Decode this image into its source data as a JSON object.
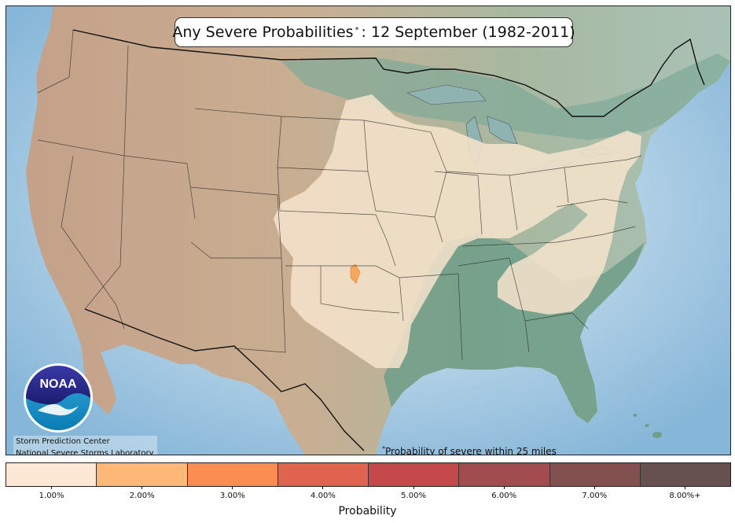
{
  "title": {
    "prefix": "Any Severe Probabilities",
    "marker": "*",
    "suffix": ": 12 September (1982-2011)"
  },
  "credits": {
    "line1": "Storm Prediction Center",
    "line2": "National Severe Storms Laboratory"
  },
  "footnote": {
    "marker": "*",
    "text": "Probability of severe within 25 miles"
  },
  "logo": {
    "text": "NOAA",
    "icon": "noaa-logo-icon"
  },
  "colorbar": {
    "label": "Probability",
    "ticks": [
      "1.00%",
      "2.00%",
      "3.00%",
      "4.00%",
      "5.00%",
      "6.00%",
      "7.00%",
      "8.00%+"
    ],
    "colors": [
      "#fde8d6",
      "#fdb877",
      "#fc8d52",
      "#e0634f",
      "#c5484a",
      "#a34c4f",
      "#82504f",
      "#665050"
    ]
  },
  "map": {
    "ocean_color": "#9cc6e0",
    "land_color": "#c9b49a",
    "low_elev_color": "#6f9e89",
    "prob_1pct_color": "#f7e4cc",
    "prob_2pct_color": "#f4a85c"
  }
}
